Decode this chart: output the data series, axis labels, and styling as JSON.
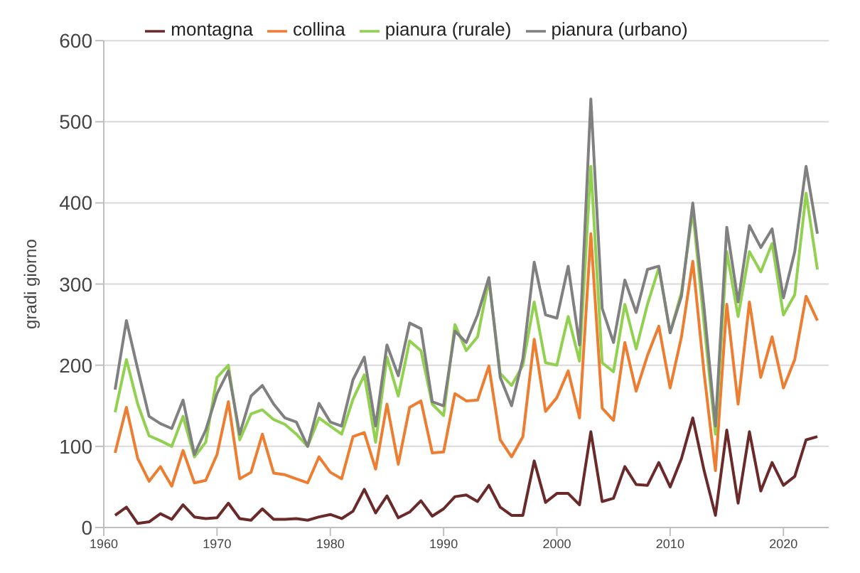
{
  "chart_data": {
    "type": "line",
    "ylabel": "gradi giorno",
    "x": [
      1961,
      1962,
      1963,
      1964,
      1965,
      1966,
      1967,
      1968,
      1969,
      1970,
      1971,
      1972,
      1973,
      1974,
      1975,
      1976,
      1977,
      1978,
      1979,
      1980,
      1981,
      1982,
      1983,
      1984,
      1985,
      1986,
      1987,
      1988,
      1989,
      1990,
      1991,
      1992,
      1993,
      1994,
      1995,
      1996,
      1997,
      1998,
      1999,
      2000,
      2001,
      2002,
      2003,
      2004,
      2005,
      2006,
      2007,
      2008,
      2009,
      2010,
      2011,
      2012,
      2013,
      2014,
      2015,
      2016,
      2017,
      2018,
      2019,
      2020,
      2021,
      2022,
      2023
    ],
    "xlim": [
      1960,
      2024
    ],
    "xticks": [
      1960,
      1970,
      1980,
      1990,
      2000,
      2010,
      2020
    ],
    "ylim": [
      0,
      600
    ],
    "yticks": [
      0,
      100,
      200,
      300,
      400,
      500,
      600
    ],
    "grid": "y",
    "legend": "top",
    "marker": "none",
    "line_style": "solid",
    "series": [
      {
        "name": "montagna",
        "color": "#6b2a2a",
        "values": [
          15,
          25,
          5,
          7,
          17,
          10,
          28,
          13,
          11,
          12,
          30,
          11,
          9,
          23,
          10,
          10,
          11,
          9,
          13,
          16,
          11,
          20,
          47,
          18,
          39,
          12,
          19,
          33,
          14,
          23,
          38,
          40,
          32,
          52,
          25,
          15,
          15,
          82,
          31,
          42,
          42,
          28,
          118,
          32,
          36,
          75,
          53,
          52,
          80,
          50,
          85,
          135,
          70,
          15,
          120,
          30,
          118,
          45,
          80,
          52,
          63,
          108,
          112
        ]
      },
      {
        "name": "collina",
        "color": "#ed7d31",
        "values": [
          92,
          148,
          85,
          57,
          75,
          51,
          95,
          55,
          58,
          90,
          155,
          60,
          68,
          115,
          67,
          65,
          60,
          55,
          87,
          68,
          60,
          112,
          117,
          72,
          152,
          78,
          148,
          156,
          92,
          93,
          165,
          156,
          157,
          199,
          108,
          87,
          112,
          232,
          143,
          160,
          193,
          135,
          362,
          147,
          132,
          228,
          168,
          212,
          248,
          172,
          235,
          328,
          190,
          70,
          275,
          152,
          278,
          185,
          235,
          172,
          207,
          285,
          255
        ]
      },
      {
        "name": "pianura (rurale)",
        "color": "#92d050",
        "values": [
          142,
          207,
          152,
          113,
          107,
          100,
          137,
          87,
          105,
          185,
          200,
          108,
          140,
          145,
          133,
          127,
          115,
          100,
          135,
          125,
          115,
          158,
          188,
          105,
          210,
          162,
          230,
          218,
          152,
          138,
          250,
          218,
          235,
          305,
          190,
          175,
          200,
          278,
          203,
          200,
          260,
          205,
          445,
          203,
          192,
          275,
          220,
          275,
          320,
          240,
          290,
          390,
          250,
          115,
          340,
          260,
          340,
          315,
          350,
          262,
          287,
          412,
          318
        ]
      },
      {
        "name": "pianura (urbano)",
        "color": "#808080",
        "values": [
          170,
          255,
          195,
          137,
          128,
          122,
          157,
          90,
          120,
          165,
          193,
          115,
          162,
          175,
          152,
          135,
          130,
          100,
          153,
          130,
          125,
          182,
          210,
          125,
          225,
          187,
          252,
          245,
          155,
          150,
          242,
          228,
          262,
          308,
          185,
          150,
          208,
          327,
          262,
          258,
          322,
          225,
          528,
          270,
          228,
          305,
          265,
          318,
          322,
          240,
          285,
          400,
          270,
          125,
          370,
          278,
          372,
          345,
          368,
          283,
          340,
          445,
          362
        ]
      }
    ]
  }
}
